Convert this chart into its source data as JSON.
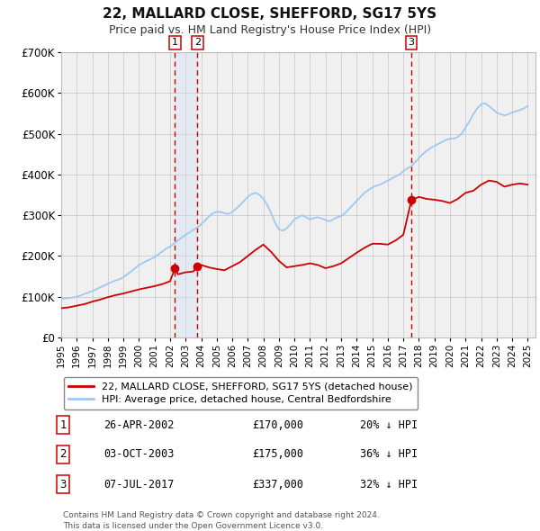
{
  "title": "22, MALLARD CLOSE, SHEFFORD, SG17 5YS",
  "subtitle": "Price paid vs. HM Land Registry's House Price Index (HPI)",
  "ylim": [
    0,
    700000
  ],
  "yticks": [
    0,
    100000,
    200000,
    300000,
    400000,
    500000,
    600000,
    700000
  ],
  "ytick_labels": [
    "£0",
    "£100K",
    "£200K",
    "£300K",
    "£400K",
    "£500K",
    "£600K",
    "£700K"
  ],
  "background_color": "#ffffff",
  "grid_color": "#cccccc",
  "plot_bg_color": "#f0f0f0",
  "hpi_color": "#a0c8f0",
  "price_color": "#cc0000",
  "transaction_dates": [
    2002.32,
    2003.75,
    2017.52
  ],
  "transaction_prices": [
    170000,
    175000,
    337000
  ],
  "vline_color": "#cc0000",
  "shade_color": "#c8dff5",
  "marker_color": "#cc0000",
  "legend_label_price": "22, MALLARD CLOSE, SHEFFORD, SG17 5YS (detached house)",
  "legend_label_hpi": "HPI: Average price, detached house, Central Bedfordshire",
  "table_data": [
    {
      "num": "1",
      "date": "26-APR-2002",
      "price": "£170,000",
      "hpi": "20% ↓ HPI"
    },
    {
      "num": "2",
      "date": "03-OCT-2003",
      "price": "£175,000",
      "hpi": "36% ↓ HPI"
    },
    {
      "num": "3",
      "date": "07-JUL-2017",
      "price": "£337,000",
      "hpi": "32% ↓ HPI"
    }
  ],
  "footnote1": "Contains HM Land Registry data © Crown copyright and database right 2024.",
  "footnote2": "This data is licensed under the Open Government Licence v3.0.",
  "xmin": 1995.0,
  "xmax": 2025.5,
  "hpi_data_x": [
    1995.0,
    1995.25,
    1995.5,
    1995.75,
    1996.0,
    1996.25,
    1996.5,
    1996.75,
    1997.0,
    1997.25,
    1997.5,
    1997.75,
    1998.0,
    1998.25,
    1998.5,
    1998.75,
    1999.0,
    1999.25,
    1999.5,
    1999.75,
    2000.0,
    2000.25,
    2000.5,
    2000.75,
    2001.0,
    2001.25,
    2001.5,
    2001.75,
    2002.0,
    2002.25,
    2002.5,
    2002.75,
    2003.0,
    2003.25,
    2003.5,
    2003.75,
    2004.0,
    2004.25,
    2004.5,
    2004.75,
    2005.0,
    2005.25,
    2005.5,
    2005.75,
    2006.0,
    2006.25,
    2006.5,
    2006.75,
    2007.0,
    2007.25,
    2007.5,
    2007.75,
    2008.0,
    2008.25,
    2008.5,
    2008.75,
    2009.0,
    2009.25,
    2009.5,
    2009.75,
    2010.0,
    2010.25,
    2010.5,
    2010.75,
    2011.0,
    2011.25,
    2011.5,
    2011.75,
    2012.0,
    2012.25,
    2012.5,
    2012.75,
    2013.0,
    2013.25,
    2013.5,
    2013.75,
    2014.0,
    2014.25,
    2014.5,
    2014.75,
    2015.0,
    2015.25,
    2015.5,
    2015.75,
    2016.0,
    2016.25,
    2016.5,
    2016.75,
    2017.0,
    2017.25,
    2017.5,
    2017.75,
    2018.0,
    2018.25,
    2018.5,
    2018.75,
    2019.0,
    2019.25,
    2019.5,
    2019.75,
    2020.0,
    2020.25,
    2020.5,
    2020.75,
    2021.0,
    2021.25,
    2021.5,
    2021.75,
    2022.0,
    2022.25,
    2022.5,
    2022.75,
    2023.0,
    2023.25,
    2023.5,
    2023.75,
    2024.0,
    2024.25,
    2024.5,
    2024.75,
    2025.0
  ],
  "hpi_data_y": [
    95000,
    96000,
    97000,
    98000,
    100000,
    103000,
    107000,
    110000,
    114000,
    118000,
    123000,
    127000,
    132000,
    136000,
    140000,
    143000,
    148000,
    155000,
    162000,
    170000,
    178000,
    183000,
    188000,
    192000,
    197000,
    204000,
    211000,
    218000,
    223000,
    230000,
    238000,
    245000,
    252000,
    258000,
    264000,
    270000,
    278000,
    287000,
    297000,
    305000,
    308000,
    308000,
    305000,
    303000,
    308000,
    316000,
    325000,
    335000,
    345000,
    352000,
    355000,
    350000,
    340000,
    325000,
    305000,
    282000,
    265000,
    262000,
    268000,
    278000,
    290000,
    295000,
    300000,
    295000,
    290000,
    293000,
    295000,
    292000,
    288000,
    285000,
    290000,
    295000,
    298000,
    305000,
    315000,
    325000,
    335000,
    345000,
    355000,
    362000,
    368000,
    372000,
    375000,
    380000,
    385000,
    390000,
    395000,
    400000,
    408000,
    415000,
    420000,
    430000,
    440000,
    450000,
    458000,
    465000,
    470000,
    475000,
    480000,
    485000,
    488000,
    488000,
    492000,
    500000,
    515000,
    530000,
    548000,
    562000,
    572000,
    575000,
    568000,
    560000,
    552000,
    548000,
    545000,
    548000,
    552000,
    555000,
    558000,
    562000,
    568000
  ],
  "price_data_x": [
    1995.0,
    1995.5,
    1996.0,
    1996.5,
    1997.0,
    1997.5,
    1998.0,
    1998.5,
    1999.0,
    1999.5,
    2000.0,
    2000.5,
    2001.0,
    2001.5,
    2002.0,
    2002.32,
    2002.5,
    2003.0,
    2003.5,
    2003.75,
    2004.0,
    2004.5,
    2005.0,
    2005.5,
    2006.0,
    2006.5,
    2007.0,
    2007.5,
    2008.0,
    2008.5,
    2009.0,
    2009.5,
    2010.0,
    2010.5,
    2011.0,
    2011.5,
    2012.0,
    2012.5,
    2013.0,
    2013.5,
    2014.0,
    2014.5,
    2015.0,
    2015.5,
    2016.0,
    2016.5,
    2017.0,
    2017.52,
    2018.0,
    2018.5,
    2019.0,
    2019.5,
    2020.0,
    2020.5,
    2021.0,
    2021.5,
    2022.0,
    2022.5,
    2023.0,
    2023.5,
    2024.0,
    2024.5,
    2025.0
  ],
  "price_data_y": [
    72000,
    74000,
    78000,
    82000,
    88000,
    93000,
    99000,
    104000,
    108000,
    113000,
    118000,
    122000,
    126000,
    131000,
    138000,
    170000,
    155000,
    160000,
    162000,
    175000,
    178000,
    172000,
    168000,
    165000,
    175000,
    185000,
    200000,
    215000,
    228000,
    210000,
    188000,
    172000,
    175000,
    178000,
    182000,
    178000,
    170000,
    175000,
    182000,
    195000,
    208000,
    220000,
    230000,
    230000,
    228000,
    238000,
    252000,
    337000,
    345000,
    340000,
    338000,
    335000,
    330000,
    340000,
    355000,
    360000,
    375000,
    385000,
    382000,
    370000,
    375000,
    378000,
    375000
  ]
}
